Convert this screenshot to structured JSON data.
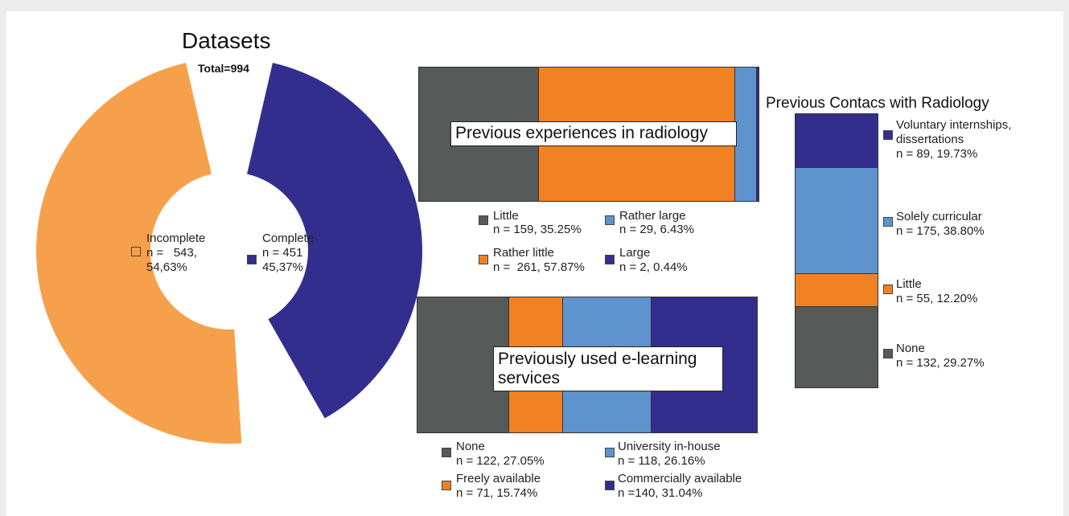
{
  "colors": {
    "orange_light": "#f7a04c",
    "navy": "#332e8e",
    "dark_gray": "#565a59",
    "orange": "#f28124",
    "light_blue": "#5e93cd"
  },
  "chart_data": [
    {
      "type": "pie",
      "title": "Datasets",
      "subtitle": "Total=994",
      "categories": [
        "Incomplete",
        "Complete"
      ],
      "values": [
        543,
        451
      ],
      "labels": [
        {
          "name": "Incomplete",
          "n": "n =   543,",
          "pct": "54,63%"
        },
        {
          "name": "Complete",
          "n": "n = 451",
          "pct": "45,37%"
        }
      ]
    },
    {
      "type": "bar",
      "orientation": "horizontal-stacked",
      "title": "Previous experiences in radiology",
      "categories": [
        "Little",
        "Rather little",
        "Rather large",
        "Large"
      ],
      "values": [
        159,
        261,
        29,
        2
      ],
      "legend": [
        {
          "name": "Little",
          "detail": "n = 159, 35.25%"
        },
        {
          "name": "Rather large",
          "detail": "n = 29, 6.43%"
        },
        {
          "name": "Rather little",
          "detail": "n =  261, 57.87%"
        },
        {
          "name": "Large",
          "detail": "n = 2, 0.44%"
        }
      ]
    },
    {
      "type": "bar",
      "orientation": "horizontal-stacked",
      "title_line1": "Previously used e-learning",
      "title_line2": "services",
      "categories": [
        "None",
        "Freely available",
        "University in-house",
        "Commercially available"
      ],
      "values": [
        122,
        71,
        118,
        140
      ],
      "legend": [
        {
          "name": "None",
          "detail": "n = 122, 27.05%"
        },
        {
          "name": "University in-house",
          "detail": "n = 118, 26.16%"
        },
        {
          "name": "Freely available",
          "detail": "n = 71, 15.74%"
        },
        {
          "name": "Commercially available",
          "detail": "n =140, 31.04%"
        }
      ]
    },
    {
      "type": "bar",
      "orientation": "vertical-stacked",
      "title": "Previous Contacs with Radiology",
      "categories": [
        "None",
        "Little",
        "Solely curricular",
        "Voluntary internships, dissertations"
      ],
      "values": [
        132,
        55,
        175,
        89
      ],
      "legend": [
        {
          "name_line1": "Voluntary internships,",
          "name_line2": "dissertations",
          "detail": "n = 89, 19.73%"
        },
        {
          "name_line1": "Solely curricular",
          "detail": "n = 175, 38.80%"
        },
        {
          "name_line1": "Little",
          "detail": "n = 55, 12.20%"
        },
        {
          "name_line1": "None",
          "detail": "n = 132, 29.27%"
        }
      ]
    }
  ]
}
